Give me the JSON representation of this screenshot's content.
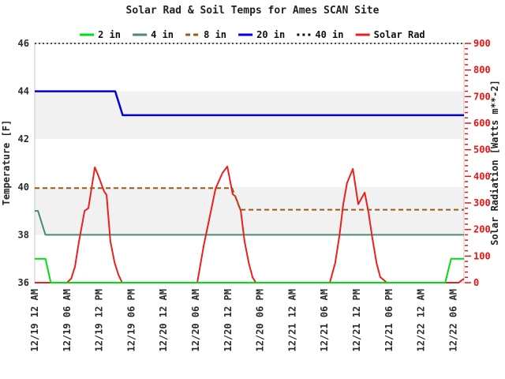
{
  "chart_data": {
    "type": "line",
    "title": "Solar Rad & Soil Temps for Ames SCAN Site",
    "left_axis": {
      "label": "Temperature [F]",
      "min": 36,
      "max": 46,
      "ticks": [
        36,
        38,
        40,
        42,
        44,
        46
      ]
    },
    "right_axis": {
      "label": "Solar Radiation [Watts m**-2]",
      "min": 0,
      "max": 900,
      "ticks": [
        0,
        100,
        200,
        300,
        400,
        500,
        600,
        700,
        800,
        900
      ],
      "minor_step": 20,
      "tick_color": "#ee1111",
      "label_color": "#ee1111"
    },
    "x_axis": {
      "min": 0,
      "max": 80,
      "tick_hours": [
        0,
        6,
        12,
        18,
        24,
        30,
        36,
        42,
        48,
        54,
        60,
        66,
        72,
        78
      ],
      "tick_labels": [
        "12/19 12 AM",
        "12/19 06 AM",
        "12/19 12 PM",
        "12/19 06 PM",
        "12/20 12 AM",
        "12/20 06 AM",
        "12/20 12 PM",
        "12/20 06 PM",
        "12/21 12 AM",
        "12/21 06 AM",
        "12/21 12 PM",
        "12/21 06 PM",
        "12/22 12 AM",
        "12/22 06 AM"
      ]
    },
    "bands": [
      {
        "from": 38,
        "to": 40
      },
      {
        "from": 42,
        "to": 44
      }
    ],
    "band_color": "#f1f1f1",
    "frame_color": "#c8c8c8",
    "grid": false,
    "legend_position": "top",
    "series": [
      {
        "name": "2 in",
        "color": "#00dd11",
        "style": "solid",
        "axis": "left",
        "width": 2,
        "points": [
          [
            0,
            37
          ],
          [
            2,
            37
          ],
          [
            3,
            36
          ],
          [
            76.5,
            36
          ],
          [
            77.6,
            37
          ],
          [
            80,
            37
          ]
        ]
      },
      {
        "name": "4 in",
        "color": "#4d8878",
        "style": "solid",
        "axis": "left",
        "width": 2,
        "points": [
          [
            0,
            39
          ],
          [
            0.6,
            39
          ],
          [
            2,
            38
          ],
          [
            80,
            38
          ]
        ]
      },
      {
        "name": "8 in",
        "color": "#9a5b16",
        "style": "dashed",
        "axis": "left",
        "width": 2,
        "points": [
          [
            0,
            39.95
          ],
          [
            36.8,
            39.95
          ],
          [
            38.3,
            39.05
          ],
          [
            80,
            39.05
          ]
        ]
      },
      {
        "name": "20 in",
        "color": "#0000dd",
        "style": "solid",
        "axis": "left",
        "width": 2.5,
        "points": [
          [
            0,
            44
          ],
          [
            15,
            44
          ],
          [
            16.4,
            43
          ],
          [
            80,
            43
          ]
        ]
      },
      {
        "name": "40 in",
        "color": "#111111",
        "style": "dotted",
        "axis": "left",
        "width": 1.5,
        "points": [
          [
            0,
            46
          ],
          [
            80,
            46
          ]
        ]
      },
      {
        "name": "Solar Rad",
        "color": "#e82020",
        "style": "solid",
        "axis": "right",
        "width": 2,
        "points": [
          [
            0,
            0
          ],
          [
            6,
            0
          ],
          [
            6.8,
            15
          ],
          [
            7.5,
            60
          ],
          [
            8.2,
            150
          ],
          [
            9.3,
            270
          ],
          [
            10,
            280
          ],
          [
            10.4,
            330
          ],
          [
            11.2,
            434
          ],
          [
            11.9,
            400
          ],
          [
            12.9,
            345
          ],
          [
            13.4,
            330
          ],
          [
            14.1,
            155
          ],
          [
            14.9,
            75
          ],
          [
            15.6,
            30
          ],
          [
            16.3,
            0
          ],
          [
            30.3,
            0
          ],
          [
            31.5,
            140
          ],
          [
            32.5,
            236
          ],
          [
            33.7,
            354
          ],
          [
            35,
            413
          ],
          [
            35.9,
            437
          ],
          [
            36.9,
            333
          ],
          [
            37.4,
            325
          ],
          [
            38.4,
            271
          ],
          [
            39.1,
            156
          ],
          [
            39.9,
            74
          ],
          [
            40.6,
            20
          ],
          [
            41.2,
            0
          ],
          [
            55,
            0
          ],
          [
            56,
            74
          ],
          [
            56.8,
            177
          ],
          [
            57.5,
            295
          ],
          [
            58.2,
            375
          ],
          [
            59.3,
            428
          ],
          [
            60.3,
            295
          ],
          [
            61.5,
            339
          ],
          [
            62.2,
            265
          ],
          [
            62.9,
            171
          ],
          [
            63.7,
            74
          ],
          [
            64.4,
            21
          ],
          [
            65.1,
            9
          ],
          [
            65.6,
            0
          ],
          [
            79,
            0
          ],
          [
            80,
            15
          ]
        ]
      }
    ],
    "draw_order": [
      "40 in",
      "20 in",
      "4 in",
      "Solar Rad",
      "8 in",
      "2 in"
    ]
  }
}
